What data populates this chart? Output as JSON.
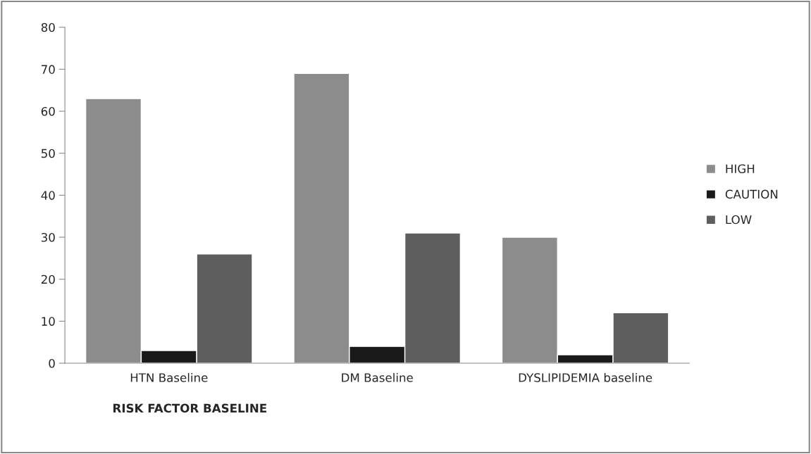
{
  "chart_data": {
    "type": "bar",
    "xlabel": "RISK FACTOR BASELINE",
    "categories": [
      "HTN Baseline",
      "DM Baseline",
      "DYSLIPIDEMIA baseline"
    ],
    "series": [
      {
        "name": "HIGH",
        "color": "#8c8c8c",
        "values": [
          63,
          69,
          30
        ]
      },
      {
        "name": "CAUTION",
        "color": "#1a1a1a",
        "values": [
          3,
          4,
          2
        ]
      },
      {
        "name": "LOW",
        "color": "#5e5e5e",
        "values": [
          26,
          31,
          12
        ]
      }
    ],
    "ylim": [
      0,
      80
    ],
    "yticks": [
      0,
      10,
      20,
      30,
      40,
      50,
      60,
      70,
      80
    ],
    "grid": false,
    "legend": "right"
  }
}
